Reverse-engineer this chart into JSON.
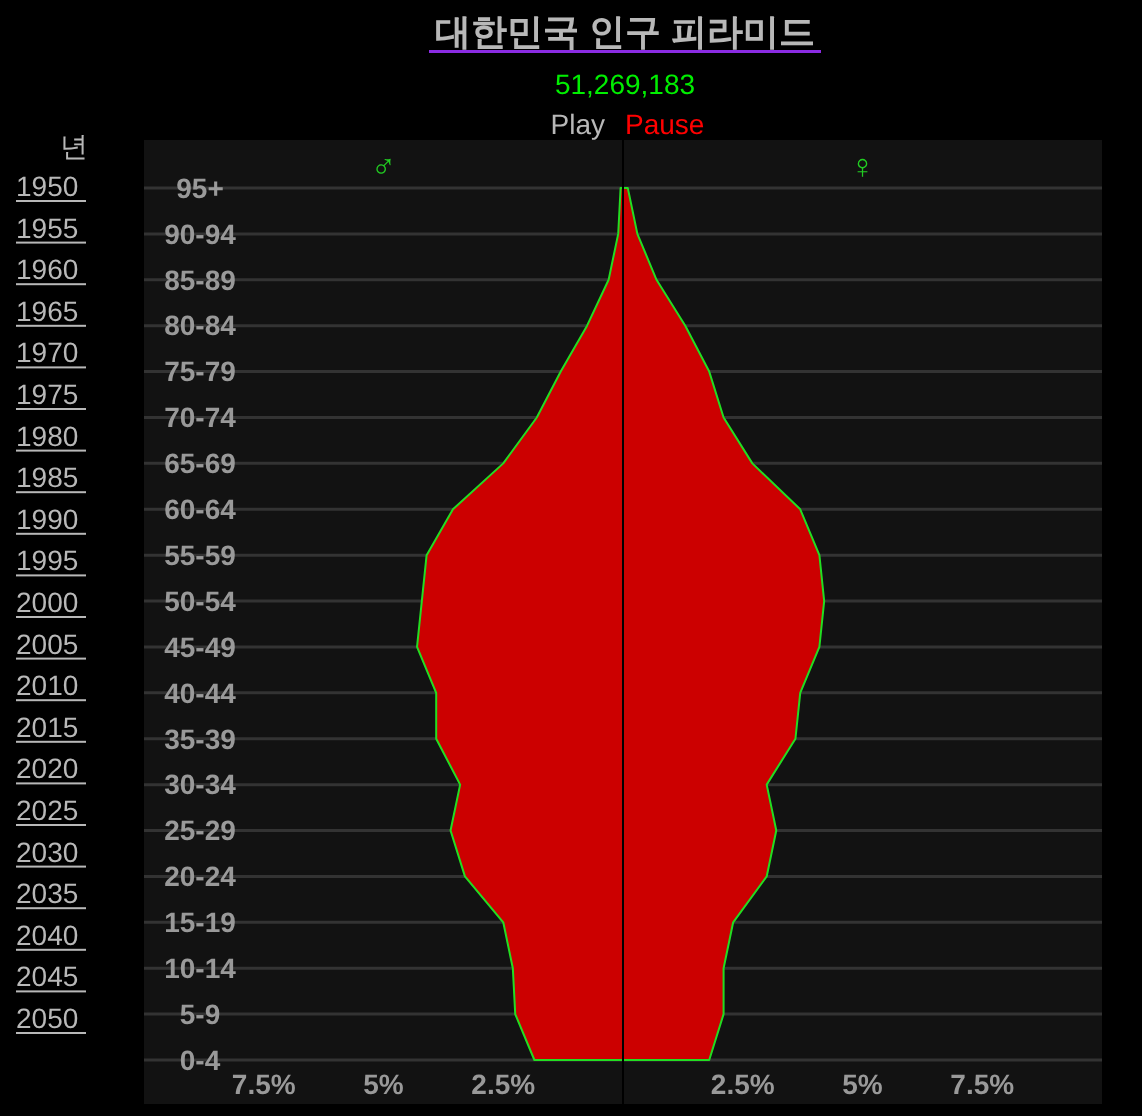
{
  "chart_data": {
    "type": "area",
    "orientation": "horizontal",
    "title": "대한민국 인구 피라미드",
    "subtitle": "51,269,183",
    "annotations": [
      "♂",
      "♀",
      "Play",
      "Pause",
      "년",
      "1950",
      "1955",
      "1960",
      "1965",
      "1970",
      "1975",
      "1980",
      "1985",
      "1990",
      "1995",
      "2000",
      "2005",
      "2010",
      "2015",
      "2020",
      "2025",
      "2030",
      "2035",
      "2040",
      "2045",
      "2050"
    ],
    "categories": [
      "95+",
      "90-94",
      "85-89",
      "80-84",
      "75-79",
      "70-74",
      "65-69",
      "60-64",
      "55-59",
      "50-54",
      "45-49",
      "40-44",
      "35-39",
      "30-34",
      "25-29",
      "20-24",
      "15-19",
      "10-14",
      "5-9",
      "0-4"
    ],
    "series": [
      {
        "color": "#cc0000",
        "values": [
          -0.05,
          -0.1,
          -0.3,
          -0.75,
          -1.3,
          -1.8,
          -2.5,
          -3.55,
          -4.1,
          -4.2,
          -4.3,
          -3.9,
          -3.9,
          -3.4,
          -3.6,
          -3.3,
          -2.5,
          -2.3,
          -2.25,
          -1.85
        ]
      },
      {
        "color": "#cc0000",
        "values": [
          0.1,
          0.3,
          0.7,
          1.3,
          1.8,
          2.1,
          2.7,
          3.7,
          4.1,
          4.2,
          4.1,
          3.7,
          3.6,
          3.0,
          3.2,
          3.0,
          2.3,
          2.1,
          2.1,
          1.8
        ]
      }
    ],
    "xlim": [
      -10,
      10
    ],
    "xticks": [
      {
        "value": -7.5,
        "label": "7.5%"
      },
      {
        "value": -5,
        "label": "5%"
      },
      {
        "value": -2.5,
        "label": "2.5%"
      },
      {
        "value": 2.5,
        "label": "2.5%"
      },
      {
        "value": 5,
        "label": "5%"
      },
      {
        "value": 7.5,
        "label": "7.5%"
      }
    ],
    "grid": "y"
  }
}
